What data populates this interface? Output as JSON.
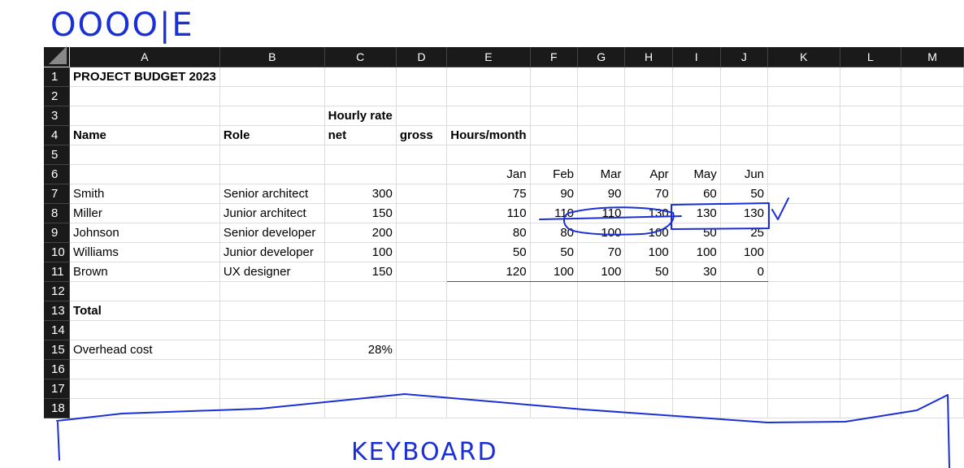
{
  "handwriting": {
    "top_note": "OOOO|E",
    "bottom_note": "KEYBOARD"
  },
  "sheet": {
    "columns": [
      "A",
      "B",
      "C",
      "D",
      "E",
      "F",
      "G",
      "H",
      "I",
      "J",
      "K",
      "L",
      "M"
    ],
    "rows": [
      "1",
      "2",
      "3",
      "4",
      "5",
      "6",
      "7",
      "8",
      "9",
      "10",
      "11",
      "12",
      "13",
      "14",
      "15",
      "16",
      "17",
      "18"
    ],
    "title": "PROJECT BUDGET 2023",
    "hourly_rate_label": "Hourly rate",
    "name_header": "Name",
    "role_header": "Role",
    "net_header": "net",
    "gross_header": "gross",
    "hours_header": "Hours/month",
    "months": [
      "Jan",
      "Feb",
      "Mar",
      "Apr",
      "May",
      "Jun"
    ],
    "people": [
      {
        "name": "Smith",
        "role": "Senior architect",
        "net": "300",
        "hours": [
          "75",
          "90",
          "90",
          "70",
          "60",
          "50"
        ]
      },
      {
        "name": "Miller",
        "role": "Junior architect",
        "net": "150",
        "hours": [
          "110",
          "110",
          "110",
          "130",
          "130",
          "130"
        ]
      },
      {
        "name": "Johnson",
        "role": "Senior developer",
        "net": "200",
        "hours": [
          "80",
          "80",
          "100",
          "100",
          "50",
          "25"
        ]
      },
      {
        "name": "Williams",
        "role": "Junior developer",
        "net": "100",
        "hours": [
          "50",
          "50",
          "70",
          "100",
          "100",
          "100"
        ]
      },
      {
        "name": "Brown",
        "role": "UX designer",
        "net": "150",
        "hours": [
          "120",
          "100",
          "100",
          "50",
          "30",
          "0"
        ]
      }
    ],
    "total_label": "Total",
    "overhead_label": "Overhead cost",
    "overhead_value": "28%"
  }
}
